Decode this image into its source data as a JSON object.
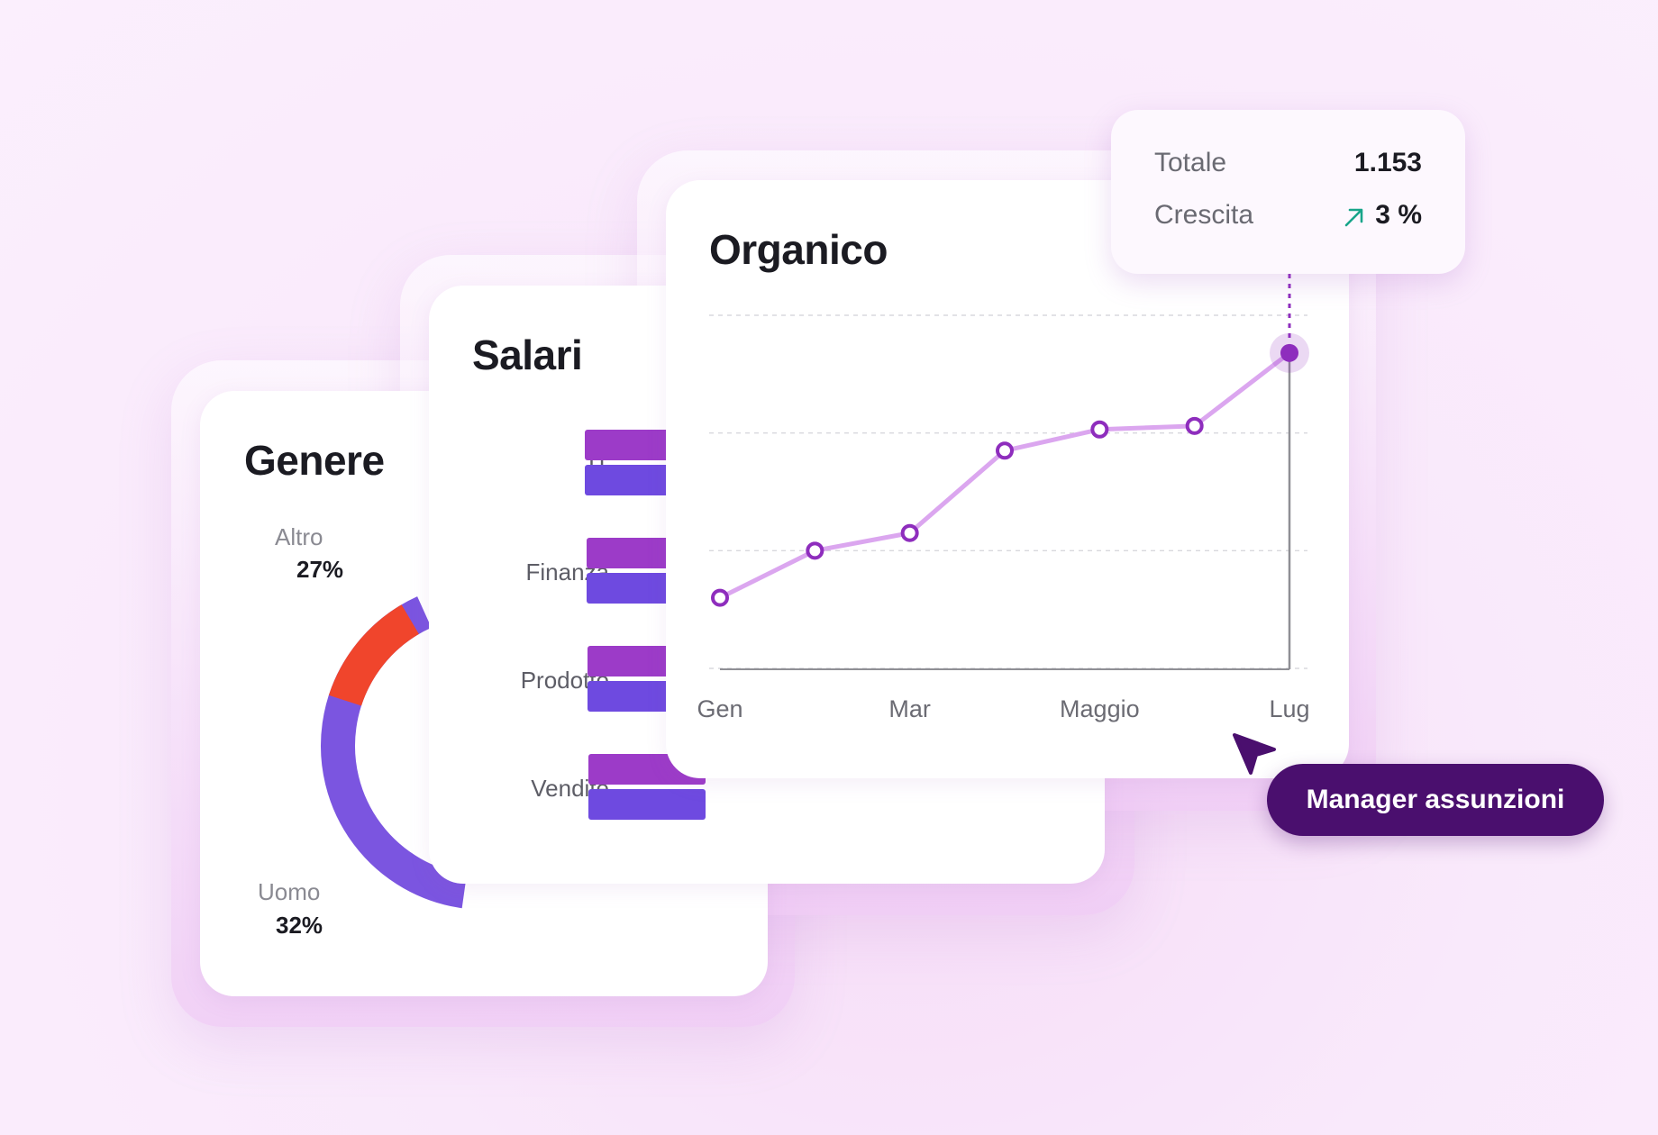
{
  "cards": {
    "genere": {
      "title": "Genere",
      "segments": [
        {
          "label": "Altro",
          "value": "27%",
          "color": "#f0452c"
        },
        {
          "label": "Uomo",
          "value": "32%",
          "color": "#7b55e0"
        }
      ]
    },
    "salari": {
      "title": "Salari",
      "categories": [
        "IT",
        "Finanza",
        "Prodotto",
        "Vendite"
      ],
      "colors": {
        "series_a": "#9c3bc8",
        "series_b": "#6e4ae0"
      }
    },
    "organico": {
      "title": "Organico",
      "line_color": "#dba6ef",
      "marker_color": "#8e2dbd"
    }
  },
  "tooltip": {
    "total_label": "Totale",
    "total_value": "1.153",
    "growth_label": "Crescita",
    "growth_value": "3 %",
    "growth_icon": "arrow-up-right-icon",
    "growth_color": "#18a58a"
  },
  "cursor": {
    "icon": "pointer-cursor-icon",
    "label": "Manager assunzioni"
  },
  "chart_data": {
    "type": "line",
    "title": "Organico",
    "x_ticks": [
      "Gen",
      "Mar",
      "Maggio",
      "Lug"
    ],
    "series": [
      {
        "values": [
          60,
          100,
          115,
          185,
          203,
          206,
          268
        ]
      }
    ],
    "ylim": [
      0,
      300
    ],
    "grid": true,
    "highlight_index": 6
  }
}
